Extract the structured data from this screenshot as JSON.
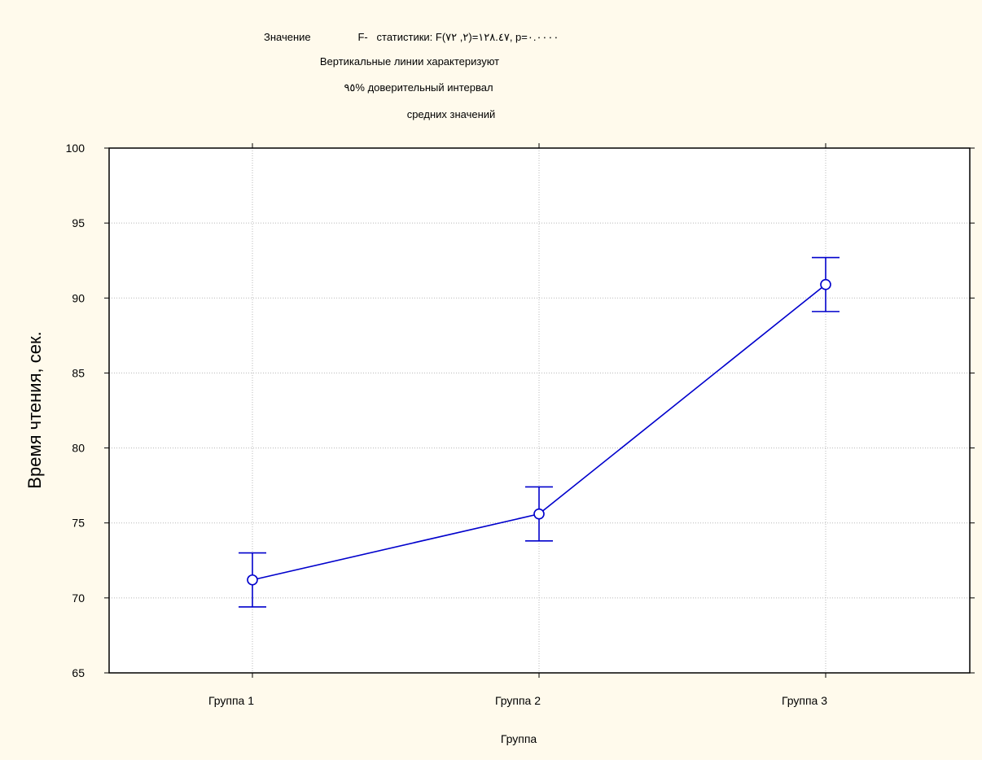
{
  "colors": {
    "background": "#fffaec",
    "plot_background": "#ffffff",
    "series": "#0000cc",
    "grid": "#b8b8b8",
    "axis": "#000000"
  },
  "chart_data": {
    "type": "line",
    "header_lines": [
      "Значение                F-   статистики: F(٢, ٧٢)=١٢٨.٤٧, p=٠.٠٠٠٠",
      "Вертикальные линии характеризуют",
      "٩٥% доверительный интервал",
      "средних значений"
    ],
    "xlabel": "Группа",
    "ylabel": "Время чтения, сек.",
    "categories": [
      "Группа 1",
      "Группа 2",
      "Группа 3"
    ],
    "series": [
      {
        "values": [
          71.2,
          75.6,
          90.9
        ],
        "ci_low": [
          69.4,
          73.8,
          89.1
        ],
        "ci_high": [
          73.0,
          77.4,
          92.7
        ]
      }
    ],
    "ylim": [
      65,
      100
    ],
    "yticks": [
      65,
      70,
      75,
      80,
      85,
      90,
      95,
      100
    ],
    "grid": true,
    "marker": "open-circle",
    "error_bars": "95% CI"
  }
}
